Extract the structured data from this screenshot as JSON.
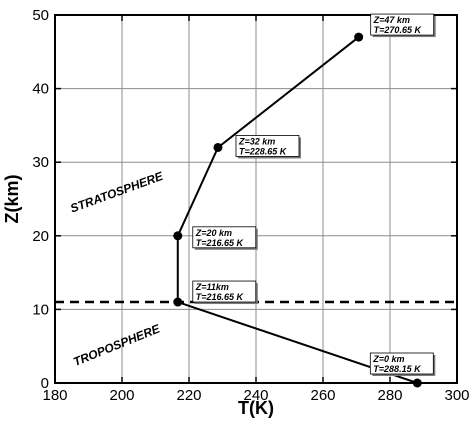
{
  "chart_data": {
    "type": "line",
    "title": "",
    "xlabel": "T(K)",
    "ylabel": "Z(km)",
    "xlim": [
      180,
      300
    ],
    "ylim": [
      0,
      50
    ],
    "xticks": [
      180,
      200,
      220,
      240,
      260,
      280,
      300
    ],
    "yticks": [
      0,
      10,
      20,
      30,
      40,
      50
    ],
    "grid": true,
    "line_color": "#000000",
    "series": [
      {
        "x": [
          288.15,
          216.65,
          216.65,
          228.65,
          270.65
        ],
        "y": [
          0,
          11,
          20,
          32,
          47
        ]
      }
    ],
    "reference_lines": [
      {
        "orientation": "horizontal",
        "y": 11,
        "style": "dashed"
      }
    ],
    "annotations": [
      {
        "x": 288.15,
        "y": 0,
        "lines": [
          "Z=0 km",
          "T=288.15 K"
        ]
      },
      {
        "x": 216.65,
        "y": 11,
        "lines": [
          "Z=11km",
          "T=216.65 K"
        ]
      },
      {
        "x": 216.65,
        "y": 20,
        "lines": [
          "Z=20 km",
          "T=216.65 K"
        ]
      },
      {
        "x": 228.65,
        "y": 32,
        "lines": [
          "Z=32 km",
          "T=228.65 K"
        ]
      },
      {
        "x": 270.65,
        "y": 47,
        "lines": [
          "Z=47 km",
          "T=270.65 K"
        ]
      }
    ],
    "region_labels": [
      {
        "text": "STRATOSPHERE"
      },
      {
        "text": "TROPOSPHERE"
      }
    ]
  }
}
